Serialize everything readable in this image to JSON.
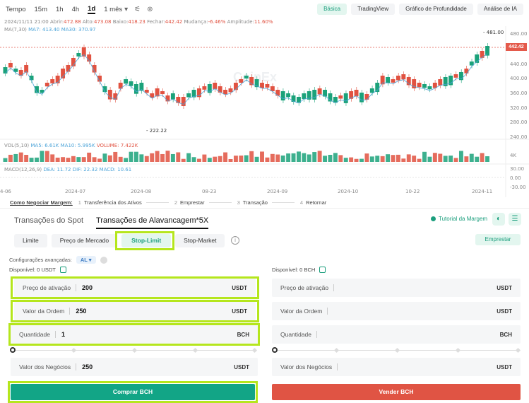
{
  "toolbar": {
    "time_label": "Tempo",
    "timeframes": [
      "15m",
      "1h",
      "4h",
      "1d",
      "1 mês"
    ],
    "active_timeframe": "1d",
    "view_tabs": [
      "Básica",
      "TradingView",
      "Gráfico de Profundidade",
      "Análise de IA"
    ],
    "active_view": "Básica"
  },
  "ohlc": {
    "date": "2024/11/11 21:00",
    "open_label": "Abrir:",
    "open": "472.88",
    "high_label": "Alto:",
    "high": "473.08",
    "low_label": "Baixo:",
    "low": "418.23",
    "close_label": "Fechar:",
    "close": "442.42",
    "change_label": "Mudança:",
    "change": "-6.46%",
    "amp_label": "Amplitude:",
    "amp": "11.60%"
  },
  "ma": {
    "label": "MA(7,30)",
    "ma7": "MA7: 413.40",
    "ma30": "MA30: 370.97"
  },
  "price_axis": [
    "480.00",
    "440.00",
    "400.00",
    "360.00",
    "320.00",
    "280.00",
    "240.00"
  ],
  "current_price": "442.42",
  "high_mark": "481.00",
  "low_mark": "222.22",
  "volume": {
    "label": "VOL(5,10)",
    "ma5": "MA5: 6.61K",
    "ma10": "MA10: 5.995K",
    "vol": "VOLUME: 7.422K",
    "axis": "4K"
  },
  "macd": {
    "label": "MACD(12,26,9)",
    "dea": "DEA: 11.72",
    "dif": "DIF: 22.32",
    "macd": "MACD: 10.61",
    "axis": [
      "30.00",
      "0.00",
      "-30.00"
    ]
  },
  "x_axis": [
    "4-06",
    "2024-07",
    "2024-08",
    "08-23",
    "2024-09",
    "2024-10",
    "10-22",
    "2024-11"
  ],
  "watermark": "CoinEx",
  "guide": {
    "title": "Como Negociar Margem:",
    "steps": [
      {
        "n": "1",
        "label": "Transferência dos Ativos"
      },
      {
        "n": "2",
        "label": "Emprestar"
      },
      {
        "n": "3",
        "label": "Transação"
      },
      {
        "n": "4",
        "label": "Retornar"
      }
    ]
  },
  "trade_tabs": [
    "Transações do Spot",
    "Transações de Alavancagem*5X"
  ],
  "tutorial": "Tutorial da Margem",
  "order_types": [
    "Limite",
    "Preço de Mercado",
    "Stop-Limit",
    "Stop-Market"
  ],
  "active_order_type": "Stop-Limit",
  "borrow_button": "Emprestar",
  "advanced": {
    "label": "Configurações avançadas:",
    "value": "AL"
  },
  "buy": {
    "available": "Disponível: 0 USDT",
    "trigger_label": "Preço de ativação",
    "trigger_value": "200",
    "trigger_unit": "USDT",
    "order_label": "Valor da Ordem",
    "order_value": "250",
    "order_unit": "USDT",
    "qty_label": "Quantidade",
    "qty_value": "1",
    "qty_unit": "BCH",
    "total_label": "Valor dos Negócios",
    "total_value": "250",
    "total_unit": "USDT",
    "button": "Comprar BCH"
  },
  "sell": {
    "available": "Disponível: 0 BCH",
    "trigger_label": "Preço de ativação",
    "trigger_unit": "USDT",
    "order_label": "Valor da Ordem",
    "order_unit": "USDT",
    "qty_label": "Quantidade",
    "qty_unit": "BCH",
    "total_label": "Valor dos Negócios",
    "total_unit": "USDT",
    "button": "Vender BCH"
  },
  "colors": {
    "up": "#1ba27a",
    "down": "#e15241",
    "accent": "#12a586",
    "highlight": "#b5e61d"
  }
}
